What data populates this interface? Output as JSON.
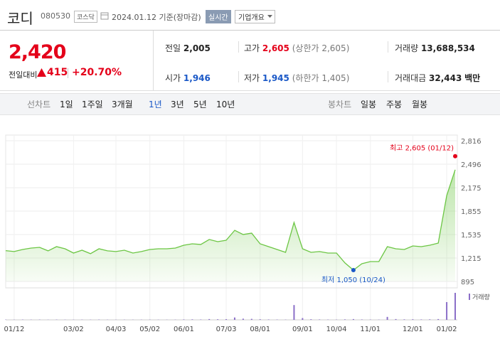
{
  "header": {
    "name": "코디",
    "code": "080530",
    "market": "코스닥",
    "date": "2024.01.12 기준(장마감)",
    "realtime": "실시간",
    "company_info": "기업개요"
  },
  "quote": {
    "price": "2,420",
    "change_label": "전일대비",
    "change": "415",
    "change_rate": "+20.70%"
  },
  "stats": [
    {
      "label": "전일",
      "value": "2,005"
    },
    {
      "label": "고가",
      "value": "2,605",
      "note": "(상한가 2,605)"
    },
    {
      "label": "거래량",
      "value": "13,688,534"
    },
    {
      "label": "시가",
      "value": "1,946"
    },
    {
      "label": "저가",
      "value": "1,945",
      "note": "(하한가 1,405)"
    },
    {
      "label": "거래대금",
      "value": "32,443",
      "unit": "백만"
    }
  ],
  "tabs": {
    "line_label": "선차트",
    "line": [
      "1일",
      "1주일",
      "3개월",
      "1년",
      "3년",
      "5년",
      "10년"
    ],
    "candle_label": "봉차트",
    "candle": [
      "일봉",
      "주봉",
      "월봉"
    ]
  },
  "chart_data": {
    "type": "line",
    "color": "#6cc644",
    "categories": [
      null,
      "01/12",
      null,
      null,
      null,
      null,
      null,
      null,
      "03/02",
      null,
      null,
      null,
      null,
      "04/03",
      null,
      null,
      null,
      "05/02",
      null,
      null,
      null,
      "06/01",
      null,
      null,
      null,
      null,
      "07/03",
      null,
      null,
      null,
      "08/01",
      null,
      null,
      null,
      null,
      "09/01",
      null,
      null,
      null,
      "10/04",
      null,
      null,
      null,
      "11/01",
      null,
      null,
      null,
      null,
      "12/01",
      null,
      null,
      null,
      "01/02",
      null
    ],
    "values": [
      1316,
      1303,
      1332,
      1351,
      1361,
      1313,
      1370,
      1341,
      1283,
      1322,
      1274,
      1341,
      1313,
      1303,
      1322,
      1283,
      1303,
      1332,
      1341,
      1341,
      1351,
      1390,
      1409,
      1400,
      1468,
      1438,
      1458,
      1594,
      1536,
      1555,
      1409,
      1370,
      1332,
      1293,
      1700,
      1341,
      1293,
      1303,
      1283,
      1283,
      1148,
      1050,
      1138,
      1167,
      1167,
      1370,
      1341,
      1332,
      1380,
      1370,
      1390,
      1419,
      2069,
      2420
    ],
    "ylim": [
      895,
      2816
    ],
    "yticks": [
      {
        "value": 895,
        "label": "895"
      },
      {
        "value": 1215,
        "label": "1,215"
      },
      {
        "value": 1535,
        "label": "1,535"
      },
      {
        "value": 1855,
        "label": "1,855"
      },
      {
        "value": 2175,
        "label": "2,175"
      },
      {
        "value": 2496,
        "label": "2,496"
      },
      {
        "value": 2816,
        "label": "2,816"
      }
    ],
    "grid": true,
    "volume": {
      "label": "거래량",
      "color": "#8b6fc8",
      "values": [
        120000,
        90000,
        150000,
        110000,
        130000,
        80000,
        140000,
        100000,
        90000,
        120000,
        100000,
        150000,
        90000,
        80000,
        100000,
        90000,
        110000,
        120000,
        100000,
        90000,
        110000,
        200000,
        250000,
        180000,
        400000,
        300000,
        350000,
        1200000,
        600000,
        500000,
        300000,
        200000,
        150000,
        120000,
        7500000,
        900000,
        300000,
        200000,
        150000,
        120000,
        250000,
        400000,
        200000,
        150000,
        120000,
        1500000,
        400000,
        250000,
        300000,
        200000,
        250000,
        400000,
        9000000,
        13688534
      ]
    },
    "high": {
      "label": "최고 2,605 (01/12)",
      "value": 2605
    },
    "low": {
      "label": "최저 1,050 (10/24)",
      "value": 1050
    }
  }
}
